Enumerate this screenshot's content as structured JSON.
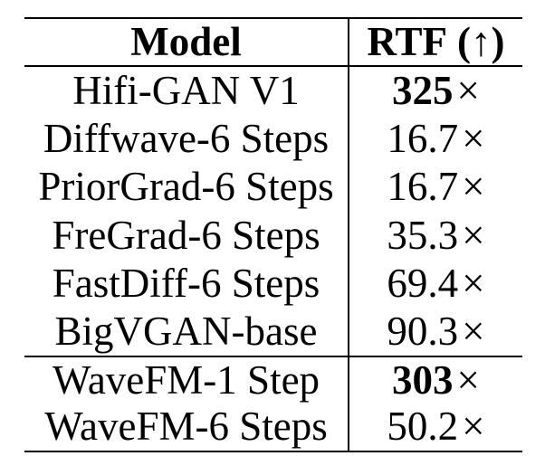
{
  "document": {
    "background_color": "#ffffff",
    "text_color": "#000000",
    "rule_color": "#000000"
  },
  "table": {
    "header": {
      "model_label": "Model",
      "rtf_label": "RTF",
      "paren_open": "(",
      "up_arrow": "↑",
      "paren_close": ")"
    },
    "times_symbol": "×",
    "rows": [
      {
        "model": "Hifi-GAN V1",
        "rtf": "325",
        "emphasized": true
      },
      {
        "model": "Diffwave-6 Steps",
        "rtf": "16.7",
        "emphasized": false
      },
      {
        "model": "PriorGrad-6 Steps",
        "rtf": "16.7",
        "emphasized": false
      },
      {
        "model": "FreGrad-6 Steps",
        "rtf": "35.3",
        "emphasized": false
      },
      {
        "model": "FastDiff-6 Steps",
        "rtf": "69.4",
        "emphasized": false
      },
      {
        "model": "BigVGAN-base",
        "rtf": "90.3",
        "emphasized": false
      },
      {
        "model": "WaveFM-1 Step",
        "rtf": "303",
        "emphasized": true
      },
      {
        "model": "WaveFM-6 Steps",
        "rtf": "50.2",
        "emphasized": false
      }
    ]
  }
}
